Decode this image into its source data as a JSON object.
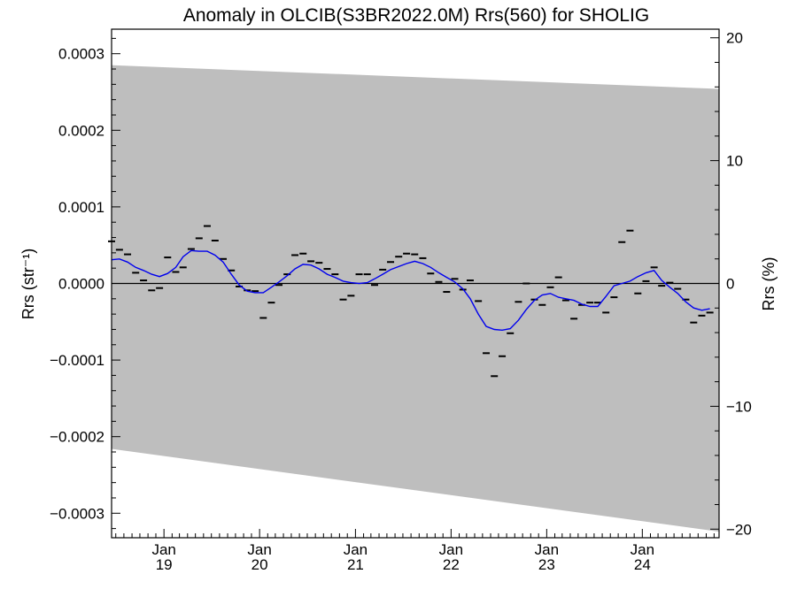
{
  "chart_data": {
    "type": "line",
    "title": "Anomaly in OLCIB(S3BR2022.0M) Rrs(560) for SHOLIG",
    "ylabel": "Rrs (str⁻¹)",
    "y2label": "Rrs (%)",
    "xlabel": "",
    "xlim": [
      "2018-06-15",
      "2024-10-20"
    ],
    "ylim": [
      -0.000332,
      0.000332
    ],
    "y2lim": [
      -20.7,
      20.7
    ],
    "x_ticks": [
      {
        "date": "2019-01-01",
        "month": "Jan",
        "year": "19"
      },
      {
        "date": "2020-01-01",
        "month": "Jan",
        "year": "20"
      },
      {
        "date": "2021-01-01",
        "month": "Jan",
        "year": "21"
      },
      {
        "date": "2022-01-01",
        "month": "Jan",
        "year": "22"
      },
      {
        "date": "2023-01-01",
        "month": "Jan",
        "year": "23"
      },
      {
        "date": "2024-01-01",
        "month": "Jan",
        "year": "24"
      }
    ],
    "y_ticks": [
      {
        "value": 0.0003,
        "label": "0.0003"
      },
      {
        "value": 0.0002,
        "label": "0.0002"
      },
      {
        "value": 0.0001,
        "label": "0.0001"
      },
      {
        "value": 0.0,
        "label": "0.0000"
      },
      {
        "value": -0.0001,
        "label": "−0.0001"
      },
      {
        "value": -0.0002,
        "label": "−0.0002"
      },
      {
        "value": -0.0003,
        "label": "−0.0003"
      }
    ],
    "y2_ticks": [
      {
        "value": 20,
        "label": "20"
      },
      {
        "value": 10,
        "label": "10"
      },
      {
        "value": 0,
        "label": "0"
      },
      {
        "value": -10,
        "label": "−10"
      },
      {
        "value": -20,
        "label": "−20"
      }
    ],
    "band": {
      "color": "#bebebe",
      "upper": [
        {
          "x": "2018-06-15",
          "y": 0.000285
        },
        {
          "x": "2024-10-20",
          "y": 0.000254
        }
      ],
      "lower": [
        {
          "x": "2018-06-15",
          "y": -0.000216
        },
        {
          "x": "2024-10-20",
          "y": -0.000324
        }
      ]
    },
    "zero_line": true,
    "series": [
      {
        "kind": "markers",
        "color": "#000000",
        "points": [
          {
            "x": "2018-06-15",
            "y": 5.5e-05
          },
          {
            "x": "2018-07-15",
            "y": 4.4e-05
          },
          {
            "x": "2018-08-15",
            "y": 3.8e-05
          },
          {
            "x": "2018-09-15",
            "y": 1.4e-05
          },
          {
            "x": "2018-10-15",
            "y": 4e-06
          },
          {
            "x": "2018-11-15",
            "y": -9e-06
          },
          {
            "x": "2018-12-15",
            "y": -6e-06
          },
          {
            "x": "2019-01-15",
            "y": 3.4e-05
          },
          {
            "x": "2019-02-15",
            "y": 1.5e-05
          },
          {
            "x": "2019-03-15",
            "y": 2.1e-05
          },
          {
            "x": "2019-04-15",
            "y": 4.5e-05
          },
          {
            "x": "2019-05-15",
            "y": 5.9e-05
          },
          {
            "x": "2019-06-15",
            "y": 7.5e-05
          },
          {
            "x": "2019-07-15",
            "y": 5.6e-05
          },
          {
            "x": "2019-08-15",
            "y": 3.2e-05
          },
          {
            "x": "2019-09-15",
            "y": 1.7e-05
          },
          {
            "x": "2019-10-15",
            "y": -4e-06
          },
          {
            "x": "2019-11-15",
            "y": -9e-06
          },
          {
            "x": "2019-12-15",
            "y": -1e-05
          },
          {
            "x": "2020-01-15",
            "y": -4.5e-05
          },
          {
            "x": "2020-02-15",
            "y": -2.5e-05
          },
          {
            "x": "2020-03-15",
            "y": -2e-06
          },
          {
            "x": "2020-04-15",
            "y": 1.2e-05
          },
          {
            "x": "2020-05-15",
            "y": 3.7e-05
          },
          {
            "x": "2020-06-15",
            "y": 3.9e-05
          },
          {
            "x": "2020-07-15",
            "y": 2.9e-05
          },
          {
            "x": "2020-08-15",
            "y": 2.7e-05
          },
          {
            "x": "2020-09-15",
            "y": 1.9e-05
          },
          {
            "x": "2020-10-15",
            "y": 1.2e-05
          },
          {
            "x": "2020-11-15",
            "y": -2.1e-05
          },
          {
            "x": "2020-12-15",
            "y": -1.6e-05
          },
          {
            "x": "2021-01-15",
            "y": 1.2e-05
          },
          {
            "x": "2021-02-15",
            "y": 1.2e-05
          },
          {
            "x": "2021-03-15",
            "y": -2e-06
          },
          {
            "x": "2021-04-15",
            "y": 1.8e-05
          },
          {
            "x": "2021-05-15",
            "y": 2.8e-05
          },
          {
            "x": "2021-06-15",
            "y": 3.5e-05
          },
          {
            "x": "2021-07-15",
            "y": 3.9e-05
          },
          {
            "x": "2021-08-15",
            "y": 3.8e-05
          },
          {
            "x": "2021-09-15",
            "y": 3.3e-05
          },
          {
            "x": "2021-10-15",
            "y": 1.3e-05
          },
          {
            "x": "2021-11-15",
            "y": 2e-06
          },
          {
            "x": "2021-12-15",
            "y": -1.1e-05
          },
          {
            "x": "2022-01-15",
            "y": 6e-06
          },
          {
            "x": "2022-02-15",
            "y": -8e-06
          },
          {
            "x": "2022-03-15",
            "y": 4e-06
          },
          {
            "x": "2022-04-15",
            "y": -2.3e-05
          },
          {
            "x": "2022-05-15",
            "y": -9.1e-05
          },
          {
            "x": "2022-06-15",
            "y": -0.000121
          },
          {
            "x": "2022-07-15",
            "y": -9.5e-05
          },
          {
            "x": "2022-08-15",
            "y": -6.5e-05
          },
          {
            "x": "2022-09-15",
            "y": -2.4e-05
          },
          {
            "x": "2022-10-15",
            "y": 0.0
          },
          {
            "x": "2022-11-15",
            "y": -2.1e-05
          },
          {
            "x": "2022-12-15",
            "y": -2.8e-05
          },
          {
            "x": "2023-01-15",
            "y": -5e-06
          },
          {
            "x": "2023-02-15",
            "y": 8e-06
          },
          {
            "x": "2023-03-15",
            "y": -2.2e-05
          },
          {
            "x": "2023-04-15",
            "y": -4.6e-05
          },
          {
            "x": "2023-05-15",
            "y": -2.8e-05
          },
          {
            "x": "2023-06-15",
            "y": -2.5e-05
          },
          {
            "x": "2023-07-15",
            "y": -2.5e-05
          },
          {
            "x": "2023-08-15",
            "y": -3.8e-05
          },
          {
            "x": "2023-09-15",
            "y": -1.8e-05
          },
          {
            "x": "2023-10-15",
            "y": 5.4e-05
          },
          {
            "x": "2023-11-15",
            "y": 6.9e-05
          },
          {
            "x": "2023-12-15",
            "y": -1.3e-05
          },
          {
            "x": "2024-01-15",
            "y": 3e-06
          },
          {
            "x": "2024-02-15",
            "y": 2.1e-05
          },
          {
            "x": "2024-03-15",
            "y": -3e-06
          },
          {
            "x": "2024-04-15",
            "y": 1e-06
          },
          {
            "x": "2024-05-15",
            "y": -7e-06
          },
          {
            "x": "2024-06-15",
            "y": -2.1e-05
          },
          {
            "x": "2024-07-15",
            "y": -5.1e-05
          },
          {
            "x": "2024-08-15",
            "y": -4.2e-05
          },
          {
            "x": "2024-09-15",
            "y": -3.8e-05
          }
        ]
      },
      {
        "kind": "line",
        "color": "#0000ee",
        "points": [
          {
            "x": "2018-06-15",
            "y": 3.1e-05
          },
          {
            "x": "2018-07-15",
            "y": 3.2e-05
          },
          {
            "x": "2018-08-15",
            "y": 2.8e-05
          },
          {
            "x": "2018-09-15",
            "y": 2.1e-05
          },
          {
            "x": "2018-10-15",
            "y": 1.7e-05
          },
          {
            "x": "2018-11-15",
            "y": 1.2e-05
          },
          {
            "x": "2018-12-15",
            "y": 9e-06
          },
          {
            "x": "2019-01-15",
            "y": 1.3e-05
          },
          {
            "x": "2019-02-15",
            "y": 2.1e-05
          },
          {
            "x": "2019-03-15",
            "y": 3.5e-05
          },
          {
            "x": "2019-04-15",
            "y": 4.3e-05
          },
          {
            "x": "2019-05-15",
            "y": 4.2e-05
          },
          {
            "x": "2019-06-15",
            "y": 4.2e-05
          },
          {
            "x": "2019-07-15",
            "y": 3.7e-05
          },
          {
            "x": "2019-08-15",
            "y": 2.8e-05
          },
          {
            "x": "2019-09-15",
            "y": 1.2e-05
          },
          {
            "x": "2019-10-15",
            "y": -2e-06
          },
          {
            "x": "2019-11-15",
            "y": -1e-05
          },
          {
            "x": "2019-12-15",
            "y": -1.2e-05
          },
          {
            "x": "2020-01-15",
            "y": -1.2e-05
          },
          {
            "x": "2020-02-15",
            "y": -5e-06
          },
          {
            "x": "2020-03-15",
            "y": 2e-06
          },
          {
            "x": "2020-04-15",
            "y": 1e-05
          },
          {
            "x": "2020-05-15",
            "y": 1.9e-05
          },
          {
            "x": "2020-06-15",
            "y": 2.5e-05
          },
          {
            "x": "2020-07-15",
            "y": 2.4e-05
          },
          {
            "x": "2020-08-15",
            "y": 1.9e-05
          },
          {
            "x": "2020-09-15",
            "y": 1.2e-05
          },
          {
            "x": "2020-10-15",
            "y": 8e-06
          },
          {
            "x": "2020-11-15",
            "y": 3e-06
          },
          {
            "x": "2020-12-15",
            "y": 1e-06
          },
          {
            "x": "2021-01-15",
            "y": 0.0
          },
          {
            "x": "2021-02-15",
            "y": 1e-06
          },
          {
            "x": "2021-03-15",
            "y": 6e-06
          },
          {
            "x": "2021-04-15",
            "y": 1.2e-05
          },
          {
            "x": "2021-05-15",
            "y": 1.8e-05
          },
          {
            "x": "2021-06-15",
            "y": 2.2e-05
          },
          {
            "x": "2021-07-15",
            "y": 2.6e-05
          },
          {
            "x": "2021-08-15",
            "y": 2.9e-05
          },
          {
            "x": "2021-09-15",
            "y": 2.6e-05
          },
          {
            "x": "2021-10-15",
            "y": 2.1e-05
          },
          {
            "x": "2021-11-15",
            "y": 1.4e-05
          },
          {
            "x": "2021-12-15",
            "y": 8e-06
          },
          {
            "x": "2022-01-15",
            "y": 2e-06
          },
          {
            "x": "2022-02-15",
            "y": -7e-06
          },
          {
            "x": "2022-03-15",
            "y": -2e-05
          },
          {
            "x": "2022-04-15",
            "y": -4e-05
          },
          {
            "x": "2022-05-15",
            "y": -5.6e-05
          },
          {
            "x": "2022-06-15",
            "y": -6e-05
          },
          {
            "x": "2022-07-15",
            "y": -6.1e-05
          },
          {
            "x": "2022-08-15",
            "y": -5.9e-05
          },
          {
            "x": "2022-09-15",
            "y": -4.8e-05
          },
          {
            "x": "2022-10-15",
            "y": -3.4e-05
          },
          {
            "x": "2022-11-15",
            "y": -2.2e-05
          },
          {
            "x": "2022-12-15",
            "y": -1.5e-05
          },
          {
            "x": "2023-01-15",
            "y": -1.3e-05
          },
          {
            "x": "2023-02-15",
            "y": -1.8e-05
          },
          {
            "x": "2023-03-15",
            "y": -2e-05
          },
          {
            "x": "2023-04-15",
            "y": -2.2e-05
          },
          {
            "x": "2023-05-15",
            "y": -2.7e-05
          },
          {
            "x": "2023-06-15",
            "y": -3e-05
          },
          {
            "x": "2023-07-15",
            "y": -3e-05
          },
          {
            "x": "2023-08-15",
            "y": -1.7e-05
          },
          {
            "x": "2023-09-15",
            "y": -3e-06
          },
          {
            "x": "2023-10-15",
            "y": 0.0
          },
          {
            "x": "2023-11-15",
            "y": 3e-06
          },
          {
            "x": "2023-12-15",
            "y": 9e-06
          },
          {
            "x": "2024-01-15",
            "y": 1.4e-05
          },
          {
            "x": "2024-02-15",
            "y": 1.7e-05
          },
          {
            "x": "2024-03-15",
            "y": 4e-06
          },
          {
            "x": "2024-04-15",
            "y": -5e-06
          },
          {
            "x": "2024-05-15",
            "y": -1.3e-05
          },
          {
            "x": "2024-06-15",
            "y": -2.4e-05
          },
          {
            "x": "2024-07-15",
            "y": -3.2e-05
          },
          {
            "x": "2024-08-15",
            "y": -3.5e-05
          },
          {
            "x": "2024-09-15",
            "y": -3.3e-05
          }
        ]
      }
    ],
    "grid": false,
    "legend": "none"
  }
}
